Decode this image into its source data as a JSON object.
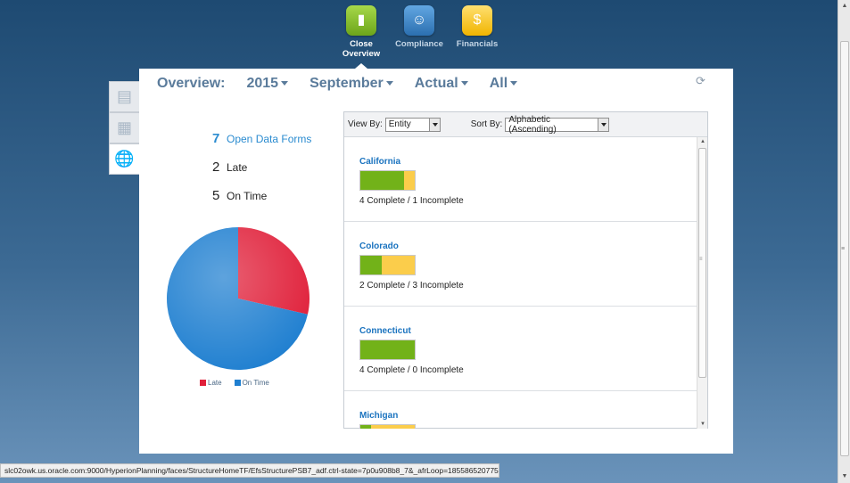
{
  "nav": {
    "items": [
      {
        "label": "Close\nOverview",
        "line1": "Close",
        "line2": "Overview",
        "icon": "book-icon",
        "color": "#8cc63f"
      },
      {
        "label": "Compliance",
        "line1": "Compliance",
        "line2": "",
        "icon": "users-icon",
        "color": "#3d87c9"
      },
      {
        "label": "Financials",
        "line1": "Financials",
        "line2": "",
        "icon": "money-bag-icon",
        "color": "#f7c51c"
      }
    ],
    "active": "Close Overview"
  },
  "sidetabs": [
    {
      "icon": "document-icon",
      "active": false
    },
    {
      "icon": "grid-icon",
      "active": false
    },
    {
      "icon": "globe-icon",
      "active": true
    }
  ],
  "header": {
    "overview_label": "Overview:",
    "year": "2015",
    "period": "September",
    "scenario": "Actual",
    "filter": "All"
  },
  "counts": [
    {
      "num": "7",
      "label": "Open Data Forms",
      "link": true
    },
    {
      "num": "2",
      "label": "Late",
      "link": false
    },
    {
      "num": "5",
      "label": "On Time",
      "link": false
    }
  ],
  "chart_data": {
    "type": "pie",
    "labels": [
      "Late",
      "On Time"
    ],
    "values": [
      2,
      5
    ],
    "colors": [
      "#e0203a",
      "#1f7fd0"
    ],
    "legend_placement": "bottom"
  },
  "list": {
    "view_by_label": "View By:",
    "view_by_value": "Entity",
    "sort_by_label": "Sort By:",
    "sort_by_value": "Alphabetic (Ascending)",
    "entities": [
      {
        "name": "California",
        "complete": 4,
        "incomplete": 1,
        "stat": "4 Complete   /  1 Incomplete"
      },
      {
        "name": "Colorado",
        "complete": 2,
        "incomplete": 3,
        "stat": "2 Complete   /  3 Incomplete"
      },
      {
        "name": "Connecticut",
        "complete": 4,
        "incomplete": 0,
        "stat": "4 Complete   /  0 Incomplete"
      },
      {
        "name": "Michigan",
        "complete": 1,
        "incomplete": 4,
        "stat": ""
      }
    ]
  },
  "status_url": "slc02owk.us.oracle.com:9000/HyperionPlanning/faces/StructureHomeTF/EfsStructurePSB7_adf.ctrl-state=7p0u908b8_7&_afrLoop=1855865207756433#"
}
